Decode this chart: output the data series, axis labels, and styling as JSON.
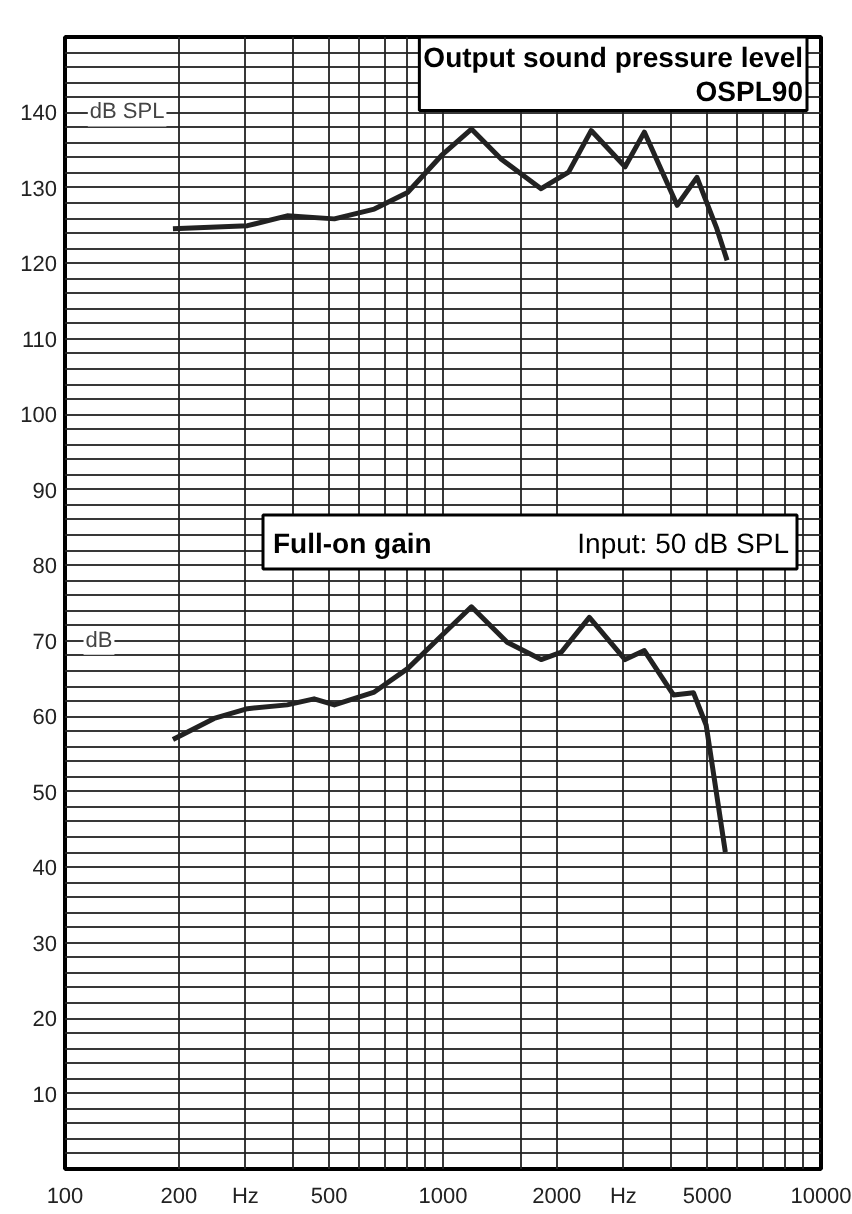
{
  "chart_data": {
    "type": "line",
    "x": [
      193,
      304,
      387,
      516,
      658,
      806,
      991,
      1189,
      1427,
      1818,
      2149,
      2466,
      3032,
      3409,
      4164,
      4697,
      5302,
      5644
    ],
    "series": [
      {
        "name": "Output sound pressure level\nOSPL90",
        "color": "#222222",
        "values": [
          124.6,
          125.0,
          126.3,
          125.9,
          127.2,
          129.4,
          134.3,
          137.8,
          133.8,
          129.9,
          132.1,
          137.6,
          132.8,
          137.4,
          127.7,
          131.4,
          124.6,
          120.4
        ]
      },
      {
        "name": "Full-on gain",
        "color": "#222222",
        "x": [
          193,
          248,
          304,
          387,
          456,
          516,
          658,
          806,
          951,
          1189,
          1478,
          1818,
          2058,
          2439,
          3032,
          3409,
          4075,
          4600,
          4970,
          5584
        ],
        "values": [
          56.9,
          59.7,
          61.0,
          61.5,
          62.3,
          61.5,
          63.2,
          66.3,
          69.8,
          74.5,
          69.8,
          67.5,
          68.5,
          73.1,
          67.5,
          68.7,
          62.8,
          63.1,
          58.8,
          42.0
        ]
      }
    ],
    "annotations": [
      "Input: 50 dB SPL",
      {
        "text": "dB SPL",
        "x": 146,
        "y": 140
      },
      {
        "text": "dB",
        "x": 123,
        "y": 70
      }
    ],
    "log": "x",
    "xlim": [
      100,
      10000
    ],
    "xticks": [
      100,
      200,
      {
        "value": 300,
        "label": "Hz"
      },
      {
        "value": 400,
        "label": null
      },
      500,
      {
        "value": 600,
        "label": null
      },
      {
        "value": 700,
        "label": null
      },
      {
        "value": 800,
        "label": null
      },
      {
        "value": 900,
        "label": null
      },
      1000,
      {
        "value": 1600,
        "label": null
      },
      2000,
      {
        "value": 3000,
        "label": "Hz"
      },
      {
        "value": 4000,
        "label": null
      },
      5000,
      {
        "value": 6000,
        "label": null
      },
      {
        "value": 7000,
        "label": null
      },
      {
        "value": 8000,
        "label": null
      },
      {
        "value": 9000,
        "label": null
      },
      10000
    ],
    "ylim": [
      0,
      150
    ],
    "yticks": [
      {
        "value": 2,
        "label": null
      },
      {
        "value": 4,
        "label": null
      },
      {
        "value": 6,
        "label": null
      },
      {
        "value": 8,
        "label": null
      },
      10,
      {
        "value": 12,
        "label": null
      },
      {
        "value": 14,
        "label": null
      },
      {
        "value": 16,
        "label": null
      },
      {
        "value": 18,
        "label": null
      },
      20,
      {
        "value": 22,
        "label": null
      },
      {
        "value": 24,
        "label": null
      },
      {
        "value": 26,
        "label": null
      },
      {
        "value": 28,
        "label": null
      },
      30,
      {
        "value": 32,
        "label": null
      },
      {
        "value": 34,
        "label": null
      },
      {
        "value": 36,
        "label": null
      },
      {
        "value": 38,
        "label": null
      },
      40,
      {
        "value": 42,
        "label": null
      },
      {
        "value": 44,
        "label": null
      },
      {
        "value": 46,
        "label": null
      },
      {
        "value": 48,
        "label": null
      },
      50,
      {
        "value": 52,
        "label": null
      },
      {
        "value": 54,
        "label": null
      },
      {
        "value": 56,
        "label": null
      },
      {
        "value": 58,
        "label": null
      },
      60,
      {
        "value": 62,
        "label": null
      },
      {
        "value": 64,
        "label": null
      },
      {
        "value": 66,
        "label": null
      },
      {
        "value": 68,
        "label": null
      },
      70,
      {
        "value": 72,
        "label": null
      },
      {
        "value": 74,
        "label": null
      },
      {
        "value": 76,
        "label": null
      },
      {
        "value": 78,
        "label": null
      },
      80,
      {
        "value": 82,
        "label": null
      },
      {
        "value": 84,
        "label": null
      },
      {
        "value": 86,
        "label": null
      },
      {
        "value": 88,
        "label": null
      },
      90,
      {
        "value": 92,
        "label": null
      },
      {
        "value": 94,
        "label": null
      },
      {
        "value": 96,
        "label": null
      },
      {
        "value": 98,
        "label": null
      },
      100,
      {
        "value": 102,
        "label": null
      },
      {
        "value": 104,
        "label": null
      },
      {
        "value": 106,
        "label": null
      },
      {
        "value": 108,
        "label": null
      },
      110,
      {
        "value": 112,
        "label": null
      },
      {
        "value": 114,
        "label": null
      },
      {
        "value": 116,
        "label": null
      },
      {
        "value": 118,
        "label": null
      },
      120,
      {
        "value": 122,
        "label": null
      },
      {
        "value": 124,
        "label": null
      },
      {
        "value": 126,
        "label": null
      },
      {
        "value": 128,
        "label": null
      },
      130,
      {
        "value": 132,
        "label": null
      },
      {
        "value": 134,
        "label": null
      },
      {
        "value": 136,
        "label": null
      },
      {
        "value": 138,
        "label": null
      },
      140,
      {
        "value": 142,
        "label": null
      },
      {
        "value": 144,
        "label": null
      },
      {
        "value": 146,
        "label": null
      },
      {
        "value": 148,
        "label": null
      }
    ],
    "grid": true,
    "line_style": "solid",
    "marker": "none"
  }
}
